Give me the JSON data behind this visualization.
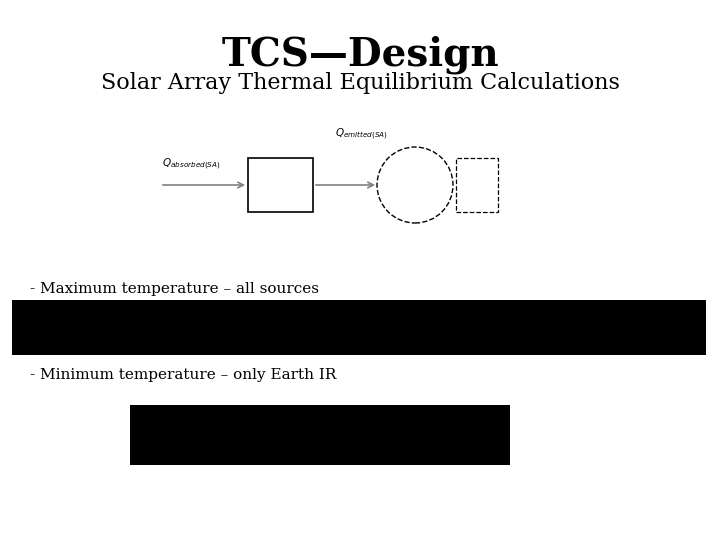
{
  "title": "TCS—Design",
  "subtitle": "Solar Array Thermal Equilibrium Calculations",
  "label_max": "- Maximum temperature – all sources",
  "label_min": "- Minimum temperature – only Earth IR",
  "bg_color": "#ffffff",
  "title_fontsize": 28,
  "subtitle_fontsize": 16,
  "label_fontsize": 11,
  "diagram_label_fontsize": 7.5
}
